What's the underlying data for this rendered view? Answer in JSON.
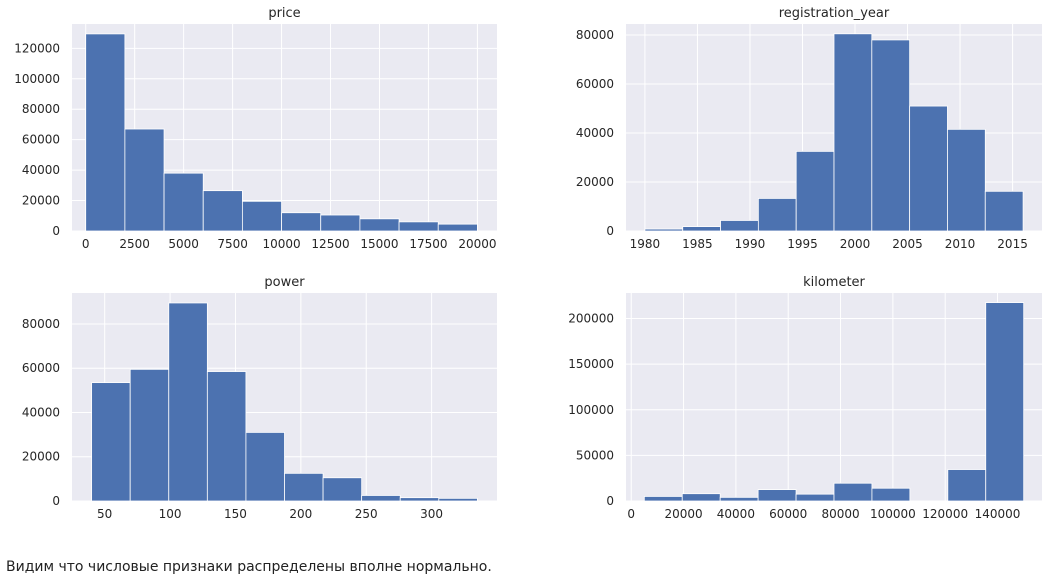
{
  "caption": "Видим что числовые признаки распределены вполне нормально.",
  "colors": {
    "bar": "#4c72b0",
    "panel_bg": "#eaeaf2",
    "grid": "#ffffff",
    "text": "#262626"
  },
  "chart_data": [
    {
      "type": "bar",
      "title": "price",
      "xlabel": "",
      "ylabel": "",
      "bin_edges": [
        0,
        2000,
        4000,
        6000,
        8000,
        10000,
        12000,
        14000,
        16000,
        18000,
        20000
      ],
      "values": [
        129500,
        67000,
        38000,
        26500,
        19500,
        12000,
        10500,
        8000,
        6000,
        4500
      ],
      "xlim": [
        -700,
        21000
      ],
      "ylim": [
        0,
        136000
      ],
      "xticks": [
        0,
        2500,
        5000,
        7500,
        10000,
        12500,
        15000,
        17500,
        20000
      ],
      "xtick_labels": [
        "0",
        "2500",
        "5000",
        "7500",
        "10000",
        "12500",
        "15000",
        "17500",
        "20000"
      ],
      "yticks": [
        0,
        20000,
        40000,
        60000,
        80000,
        100000,
        120000
      ],
      "ytick_labels": [
        "0",
        "20000",
        "40000",
        "60000",
        "80000",
        "100000",
        "120000"
      ],
      "grid": true
    },
    {
      "type": "bar",
      "title": "registration_year",
      "xlabel": "",
      "ylabel": "",
      "bin_edges": [
        1980,
        1983.6,
        1987.2,
        1990.8,
        1994.4,
        1998,
        2001.6,
        2005.2,
        2008.8,
        2012.4,
        2016
      ],
      "values": [
        800,
        1800,
        4300,
        13300,
        32500,
        80500,
        78000,
        51000,
        41500,
        16200
      ],
      "xlim": [
        1978.2,
        2017.8
      ],
      "ylim": [
        0,
        84500
      ],
      "xticks": [
        1980,
        1985,
        1990,
        1995,
        2000,
        2005,
        2010,
        2015
      ],
      "xtick_labels": [
        "1980",
        "1985",
        "1990",
        "1995",
        "2000",
        "2005",
        "2010",
        "2015"
      ],
      "yticks": [
        0,
        20000,
        40000,
        60000,
        80000
      ],
      "ytick_labels": [
        "0",
        "20000",
        "40000",
        "60000",
        "80000"
      ],
      "grid": true
    },
    {
      "type": "bar",
      "title": "power",
      "xlabel": "",
      "ylabel": "",
      "bin_edges": [
        40,
        69.5,
        99,
        128.5,
        158,
        187.5,
        217,
        246.5,
        276,
        305.5,
        335
      ],
      "values": [
        53500,
        59500,
        89500,
        58500,
        31000,
        12500,
        10500,
        2500,
        1500,
        1200
      ],
      "xlim": [
        25,
        350
      ],
      "ylim": [
        0,
        94000
      ],
      "xticks": [
        50,
        100,
        150,
        200,
        250,
        300
      ],
      "xtick_labels": [
        "50",
        "100",
        "150",
        "200",
        "250",
        "300"
      ],
      "yticks": [
        0,
        20000,
        40000,
        60000,
        80000
      ],
      "ytick_labels": [
        "0",
        "20000",
        "40000",
        "60000",
        "80000"
      ],
      "grid": true
    },
    {
      "type": "bar",
      "title": "kilometer",
      "xlabel": "",
      "ylabel": "",
      "bin_edges": [
        5000,
        19500,
        34000,
        48500,
        63000,
        77500,
        92000,
        106500,
        121000,
        135500,
        150000
      ],
      "values": [
        5000,
        8000,
        4000,
        12500,
        7500,
        19500,
        14000,
        0,
        34500,
        217500
      ],
      "xlim": [
        -2000,
        157000
      ],
      "ylim": [
        0,
        228000
      ],
      "xticks": [
        0,
        20000,
        40000,
        60000,
        80000,
        100000,
        120000,
        140000
      ],
      "xtick_labels": [
        "0",
        "20000",
        "40000",
        "60000",
        "80000",
        "100000",
        "120000",
        "140000"
      ],
      "yticks": [
        0,
        50000,
        100000,
        150000,
        200000
      ],
      "ytick_labels": [
        "0",
        "50000",
        "100000",
        "150000",
        "200000"
      ],
      "grid": true
    }
  ]
}
